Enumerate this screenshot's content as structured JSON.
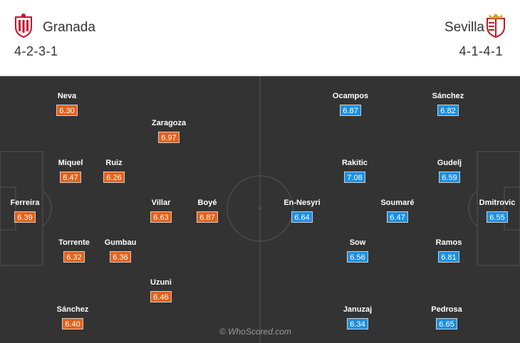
{
  "home": {
    "name": "Granada",
    "formation": "4-2-3-1",
    "crest_icon": "granada-crest",
    "rating_color": "#e2621b",
    "players": [
      {
        "name": "Ferreira",
        "rating": "6.39"
      },
      {
        "name": "Neva",
        "rating": "6.30"
      },
      {
        "name": "Miquel",
        "rating": "6.47"
      },
      {
        "name": "Torrente",
        "rating": "6.32"
      },
      {
        "name": "Sánchez",
        "rating": "6.40"
      },
      {
        "name": "Ruiz",
        "rating": "6.26"
      },
      {
        "name": "Gumbau",
        "rating": "6.36"
      },
      {
        "name": "Zaragoza",
        "rating": "6.97"
      },
      {
        "name": "Villar",
        "rating": "6.63"
      },
      {
        "name": "Uzuni",
        "rating": "6.46"
      },
      {
        "name": "Boyé",
        "rating": "6.87"
      }
    ]
  },
  "away": {
    "name": "Sevilla",
    "formation": "4-1-4-1",
    "crest_icon": "sevilla-crest",
    "rating_color": "#1d8fe0",
    "players": [
      {
        "name": "Dmitrovic",
        "rating": "6.55"
      },
      {
        "name": "Sánchez",
        "rating": "6.82"
      },
      {
        "name": "Gudelj",
        "rating": "6.59"
      },
      {
        "name": "Ramos",
        "rating": "6.81"
      },
      {
        "name": "Pedrosa",
        "rating": "6.65"
      },
      {
        "name": "Soumaré",
        "rating": "6.47"
      },
      {
        "name": "Ocampos",
        "rating": "6.87"
      },
      {
        "name": "Rakitic",
        "rating": "7.08"
      },
      {
        "name": "Sow",
        "rating": "6.56"
      },
      {
        "name": "Januzaj",
        "rating": "6.34"
      },
      {
        "name": "En-Nesyri",
        "rating": "6.64"
      }
    ]
  },
  "watermark": "© WhoScored.com",
  "pitch_color": "#333333"
}
